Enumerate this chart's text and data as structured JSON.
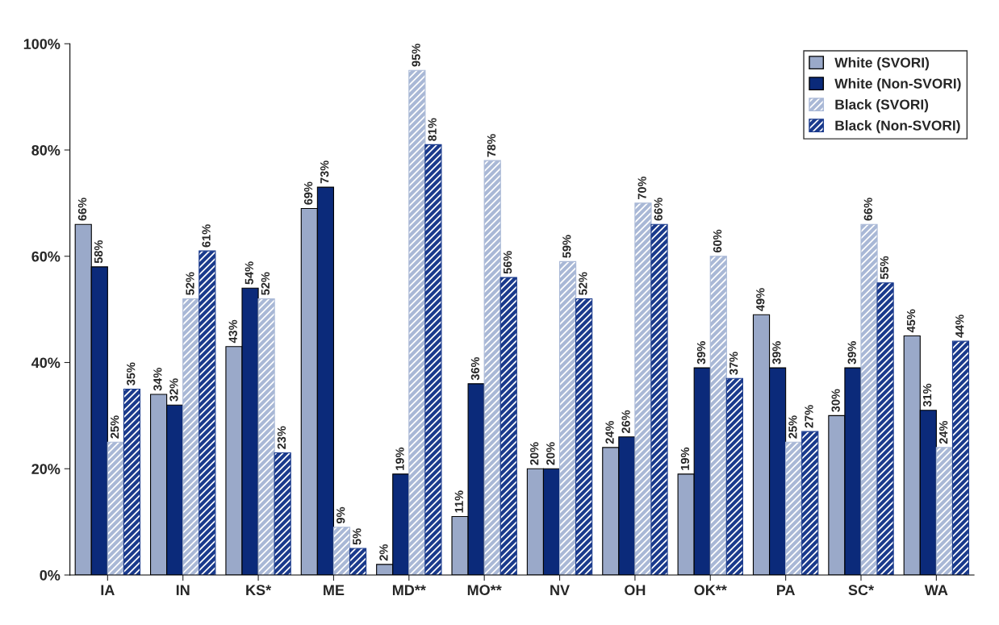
{
  "chart_data": {
    "type": "bar",
    "categories": [
      "IA",
      "IN",
      "KS*",
      "ME",
      "MD**",
      "MO**",
      "NV",
      "OH",
      "OK**",
      "PA",
      "SC*",
      "WA"
    ],
    "series": [
      {
        "name": "White (SVORI)",
        "color": "#9aa9c9",
        "values": [
          66,
          34,
          43,
          69,
          2,
          11,
          20,
          24,
          19,
          49,
          30,
          45
        ],
        "value_labels": [
          "66%",
          "34%",
          "43%",
          "69%",
          "2%",
          "11%",
          "20%",
          "24%",
          "19%",
          "49%",
          "30%",
          "45%"
        ]
      },
      {
        "name": "White (Non-SVORI)",
        "color": "#0b2a7a",
        "values": [
          58,
          32,
          54,
          73,
          19,
          36,
          20,
          26,
          39,
          39,
          39,
          31
        ],
        "value_labels": [
          "58%",
          "32%",
          "54%",
          "73%",
          "19%",
          "36%",
          "20%",
          "26%",
          "39%",
          "39%",
          "39%",
          "31%"
        ]
      },
      {
        "name": "Black (SVORI)",
        "color": "#a9b8d6",
        "values": [
          25,
          52,
          52,
          9,
          95,
          78,
          59,
          70,
          60,
          25,
          66,
          24
        ],
        "value_labels": [
          "25%",
          "52%",
          "52%",
          "9%",
          "95%",
          "78%",
          "59%",
          "70%",
          "60%",
          "25%",
          "66%",
          "24%"
        ]
      },
      {
        "name": "Black (Non-SVORI)",
        "color": "#1a3a8c",
        "values": [
          35,
          61,
          23,
          5,
          81,
          56,
          52,
          66,
          37,
          27,
          55,
          44
        ],
        "value_labels": [
          "35%",
          "61%",
          "23%",
          "5%",
          "81%",
          "56%",
          "52%",
          "66%",
          "37%",
          "27%",
          "55%",
          "44%"
        ]
      }
    ],
    "ylim": [
      0,
      100
    ],
    "yticks": [
      {
        "value": 0,
        "label": "0%"
      },
      {
        "value": 20,
        "label": "20%"
      },
      {
        "value": 40,
        "label": "40%"
      },
      {
        "value": 60,
        "label": "60%"
      },
      {
        "value": 80,
        "label": "80%"
      },
      {
        "value": 100,
        "label": "100%"
      }
    ],
    "legend": "top right",
    "grid": false
  }
}
